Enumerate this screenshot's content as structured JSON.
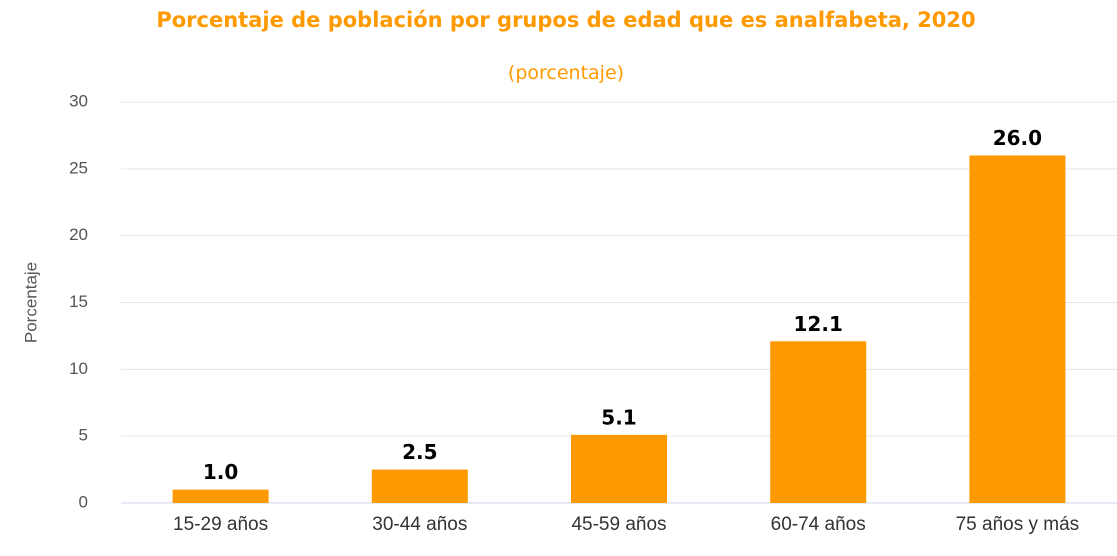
{
  "chart_data": {
    "type": "bar",
    "title": "Porcentaje de población por grupos de edad que es analfabeta, 2020",
    "subtitle": "(porcentaje)",
    "y_label": "Porcentaje",
    "categories": [
      "15-29 años",
      "30-44 años",
      "45-59 años",
      "60-74 años",
      "75 años y más"
    ],
    "values": [
      1.0,
      2.5,
      5.1,
      12.1,
      26.0
    ],
    "value_labels": [
      "1.0",
      "2.5",
      "5.1",
      "12.1",
      "26.0"
    ],
    "color": "#ff9900",
    "ylim": [
      0,
      30
    ],
    "yticks": [
      0,
      5,
      10,
      15,
      20,
      25,
      30
    ],
    "grid": true
  }
}
